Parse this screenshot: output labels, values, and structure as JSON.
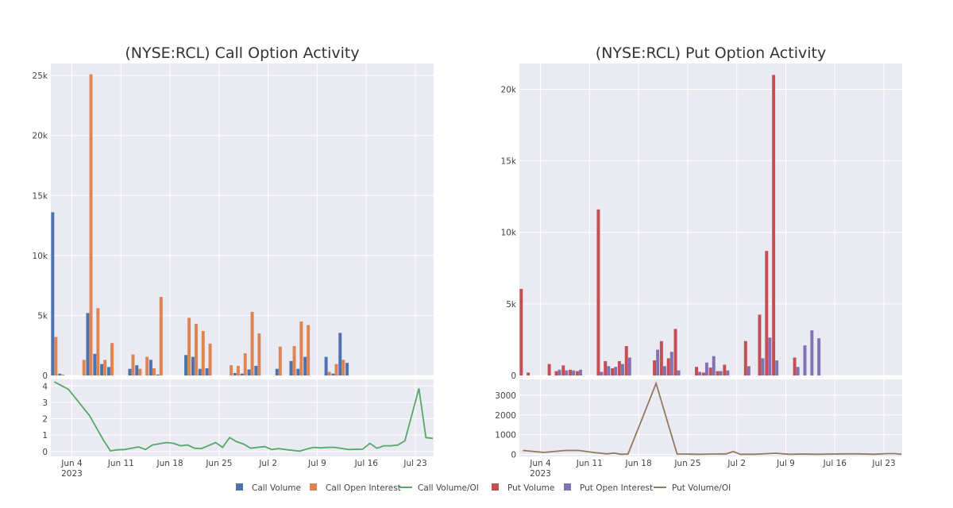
{
  "colors": {
    "call_volume": "#4c72b0",
    "call_open_interest": "#dd8452",
    "call_ratio": "#55a868",
    "put_volume": "#c44e52",
    "put_open_interest": "#8172b3",
    "put_ratio": "#937860",
    "plot_bg": "#eaeaf2",
    "grid": "#ffffff"
  },
  "x_ticks": [
    "Jun 4",
    "Jun 11",
    "Jun 18",
    "Jun 25",
    "Jul 2",
    "Jul 9",
    "Jul 16",
    "Jul 23"
  ],
  "x_tick_days": [
    3,
    10,
    17,
    24,
    31,
    38,
    45,
    52
  ],
  "x_year_label": "2023",
  "legend": [
    "Call Volume",
    "Call Open Interest",
    "Call Volume/OI",
    "Put Volume",
    "Put Open Interest",
    "Put Volume/OI"
  ],
  "chart_data": [
    {
      "type": "bar",
      "title": "(NYSE:RCL) Call Option Activity",
      "x_dates": [
        "2023-06-01",
        "2023-06-02",
        "2023-06-05",
        "2023-06-06",
        "2023-06-07",
        "2023-06-08",
        "2023-06-09",
        "2023-06-12",
        "2023-06-13",
        "2023-06-14",
        "2023-06-15",
        "2023-06-16",
        "2023-06-20",
        "2023-06-21",
        "2023-06-22",
        "2023-06-23",
        "2023-06-26",
        "2023-06-27",
        "2023-06-28",
        "2023-06-29",
        "2023-06-30",
        "2023-07-03",
        "2023-07-05",
        "2023-07-06",
        "2023-07-07",
        "2023-07-10",
        "2023-07-11",
        "2023-07-12",
        "2023-07-13",
        "2023-07-14",
        "2023-07-17",
        "2023-07-18",
        "2023-07-19",
        "2023-07-20",
        "2023-07-21",
        "2023-07-24",
        "2023-07-25"
      ],
      "series": [
        {
          "name": "Call Volume",
          "values": [
            13600,
            150,
            0,
            5200,
            1800,
            950,
            700,
            550,
            850,
            0,
            1300,
            80,
            1700,
            1550,
            550,
            600,
            0,
            200,
            150,
            500,
            800,
            550,
            1200,
            550,
            1550,
            1550,
            150,
            3550,
            1050
          ]
        },
        {
          "name": "Call Open Interest",
          "values": [
            3200,
            80,
            1300,
            25100,
            5600,
            1300,
            2700,
            1750,
            550,
            1550,
            600,
            6550,
            4800,
            4300,
            3700,
            2650,
            850,
            800,
            1850,
            5300,
            3500,
            2400,
            2450,
            4500,
            4200,
            300,
            950,
            1300
          ]
        }
      ],
      "ylim": [
        0,
        26000
      ],
      "yticks": [
        "0",
        "5k",
        "10k",
        "15k",
        "20k",
        "25k"
      ]
    },
    {
      "type": "bar",
      "title": "(NYSE:RCL) Put Option Activity",
      "series": [
        {
          "name": "Put Volume",
          "values": [
            6050,
            200,
            800,
            300,
            700,
            400,
            300,
            11600,
            1000,
            500,
            1000,
            2050,
            1050,
            2400,
            1200,
            3250,
            600,
            200,
            550,
            300,
            750,
            2400,
            4250,
            8700,
            21000,
            1250
          ]
        },
        {
          "name": "Put Open Interest",
          "values": [
            0,
            0,
            0,
            400,
            350,
            350,
            400,
            250,
            650,
            600,
            800,
            1250,
            1800,
            650,
            1650,
            350,
            250,
            900,
            1350,
            300,
            350,
            650,
            1200,
            2650,
            1050,
            600,
            2100,
            3150,
            2600
          ]
        }
      ],
      "ylim": [
        0,
        21800
      ],
      "yticks": [
        "0",
        "5k",
        "10k",
        "15k",
        "20k"
      ]
    },
    {
      "type": "line",
      "series": [
        {
          "name": "Call Volume/OI",
          "x": [
            0,
            2,
            5,
            7,
            8,
            9,
            10,
            11,
            12,
            13,
            14,
            16,
            17,
            18,
            19,
            20,
            21,
            23,
            24,
            25,
            26,
            27,
            28,
            30,
            31,
            32,
            33,
            35,
            36,
            37,
            38,
            39,
            40,
            42,
            44,
            45,
            46,
            47,
            48,
            49,
            50,
            52,
            53,
            54
          ],
          "values": [
            4.25,
            3.8,
            2.2,
            0.7,
            0.04,
            0.1,
            0.12,
            0.2,
            0.28,
            0.12,
            0.4,
            0.55,
            0.5,
            0.35,
            0.4,
            0.2,
            0.18,
            0.55,
            0.25,
            0.85,
            0.6,
            0.45,
            0.2,
            0.3,
            0.12,
            0.18,
            0.12,
            0.02,
            0.15,
            0.25,
            0.22,
            0.25,
            0.25,
            0.12,
            0.14,
            0.5,
            0.2,
            0.35,
            0.35,
            0.4,
            0.65,
            3.85,
            0.85,
            0.8
          ]
        }
      ],
      "ylim": [
        -0.3,
        4.4
      ],
      "yticks": [
        "0",
        "1",
        "2",
        "3",
        "4"
      ]
    },
    {
      "type": "line",
      "series": [
        {
          "name": "Put Volume/OI",
          "x": [
            0,
            3,
            6,
            8,
            10,
            12,
            13,
            14,
            15,
            17,
            19,
            22,
            23,
            25,
            27,
            29,
            30,
            31,
            32,
            33,
            35,
            36,
            38,
            40,
            42,
            44,
            46,
            48,
            50,
            52,
            53,
            54
          ],
          "values": [
            200,
            100,
            200,
            200,
            100,
            30,
            70,
            10,
            20,
            1800,
            3600,
            20,
            20,
            10,
            20,
            30,
            150,
            10,
            10,
            10,
            40,
            60,
            10,
            20,
            10,
            20,
            30,
            30,
            10,
            40,
            40,
            10
          ]
        }
      ],
      "ylim": [
        -100,
        3800
      ],
      "yticks": [
        "0",
        "1000",
        "2000",
        "3000"
      ]
    }
  ]
}
